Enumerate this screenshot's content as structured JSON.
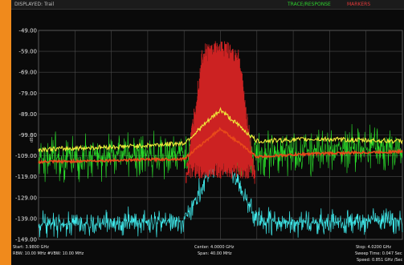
{
  "topbar": {
    "left_text": "DISPLAYED: Trail",
    "mid_text": "TRACE/RESPONSE",
    "right_text": "MARKERS"
  },
  "chart_data": {
    "type": "line",
    "title": "",
    "ylabel": "dBm",
    "ylim": [
      -149,
      -49
    ],
    "yticks": [
      "-49.00",
      "-59.00",
      "-69.00",
      "-79.00",
      "-89.00",
      "-99.00",
      "-109.00",
      "-119.00",
      "-129.00",
      "-139.00",
      "-149.00"
    ],
    "xlim_ghz": [
      3.98,
      4.02
    ],
    "grid": true,
    "series": [
      {
        "name": "",
        "color": "#f0ea3a",
        "trace": "max-hold",
        "x": [
          3.98,
          3.9898,
          3.996,
          4.0,
          4.004,
          4.0102,
          4.02
        ],
        "y": [
          -106,
          -104.5,
          -103,
          -87,
          -102,
          -101,
          -102
        ]
      },
      {
        "name": "",
        "color": "#e84a1a",
        "trace": "average",
        "x": [
          3.98,
          3.99,
          3.996,
          4.0,
          4.004,
          4.01,
          4.02
        ],
        "y": [
          -112,
          -111,
          -110.5,
          -96,
          -109.5,
          -108,
          -107
        ]
      },
      {
        "name": "",
        "color": "#2be02b",
        "trace": "clear-write",
        "x": [
          3.98,
          3.99,
          3.996,
          4.0,
          4.004,
          4.01,
          4.02
        ],
        "y": [
          -110,
          -109,
          -108,
          -104,
          -108,
          -106,
          -105
        ]
      },
      {
        "name": "",
        "color": "#cc2222",
        "trace": "signal",
        "x": [
          3.9962,
          3.998,
          4.0,
          4.002,
          4.0038
        ],
        "y": [
          -120,
          -60,
          -58,
          -62,
          -120
        ]
      },
      {
        "name": "",
        "color": "#3fe8ea",
        "trace": "noise-floor",
        "x": [
          3.98,
          3.99,
          3.996,
          4.0,
          4.004,
          4.01,
          4.02
        ],
        "y": [
          -142,
          -141,
          -140,
          -106,
          -140,
          -141,
          -140
        ]
      }
    ],
    "colors": {
      "background": "#0a0a0a",
      "grid": "#4a4a4a",
      "yellow": "#f0ea3a",
      "red": "#cc2222",
      "orange": "#e84a1a",
      "green": "#2be02b",
      "cyan": "#3fe8ea"
    }
  },
  "bottom": {
    "start": "Start: 3.9800 GHz",
    "rbw": "RBW: 10.00 MHz  #VBW: 10.00 MHz",
    "center": "Center: 4.0000 GHz",
    "span": "Span: 40.00 MHz",
    "stop": "Stop: 4.0200 GHz",
    "sweep": "Sweep Time: 0.047 Sec",
    "speed": "Speed: 0.851 GHz /Sec"
  }
}
